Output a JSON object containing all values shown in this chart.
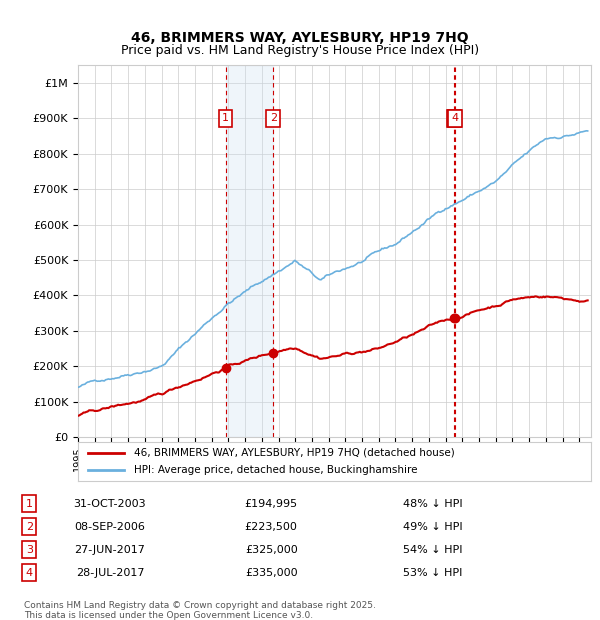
{
  "title1": "46, BRIMMERS WAY, AYLESBURY, HP19 7HQ",
  "title2": "Price paid vs. HM Land Registry's House Price Index (HPI)",
  "ylabel_ticks": [
    "£0",
    "£100K",
    "£200K",
    "£300K",
    "£400K",
    "£500K",
    "£600K",
    "£700K",
    "£800K",
    "£900K",
    "£1M"
  ],
  "ytick_values": [
    0,
    100000,
    200000,
    300000,
    400000,
    500000,
    600000,
    700000,
    800000,
    900000,
    1000000
  ],
  "ylim": [
    0,
    1050000
  ],
  "transactions": [
    {
      "num": 1,
      "date": "31-OCT-2003",
      "price": 194995,
      "price_str": "£194,995",
      "pct": "48% ↓ HPI",
      "year": 2003.83
    },
    {
      "num": 2,
      "date": "08-SEP-2006",
      "price": 223500,
      "price_str": "£223,500",
      "pct": "49% ↓ HPI",
      "year": 2006.69
    },
    {
      "num": 3,
      "date": "27-JUN-2017",
      "price": 325000,
      "price_str": "£325,000",
      "pct": "54% ↓ HPI",
      "year": 2017.49
    },
    {
      "num": 4,
      "date": "28-JUL-2017",
      "price": 335000,
      "price_str": "£335,000",
      "pct": "53% ↓ HPI",
      "year": 2017.57
    }
  ],
  "note1": "Contains HM Land Registry data © Crown copyright and database right 2025.",
  "note2": "This data is licensed under the Open Government Licence v3.0.",
  "hpi_color": "#6ab0de",
  "price_color": "#cc0000",
  "box_color": "#cc0000",
  "shade_color": "#cce0f0",
  "grid_color": "#cccccc",
  "background_color": "#ffffff"
}
